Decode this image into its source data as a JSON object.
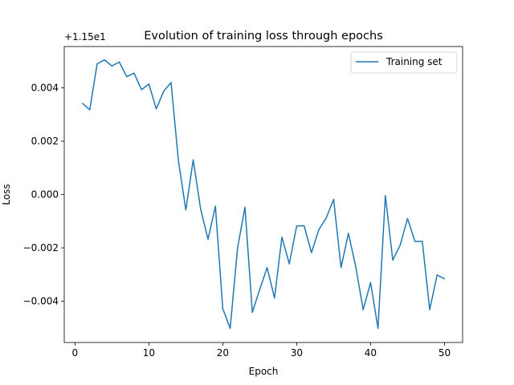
{
  "chart_data": {
    "type": "line",
    "title": "Evolution of training loss through epochs",
    "xlabel": "Epoch",
    "ylabel": "Loss",
    "offset_label": "+1.15e1",
    "xlim": [
      -1.45,
      52.45
    ],
    "ylim": [
      -0.00555,
      0.00555
    ],
    "xticks": [
      0,
      10,
      20,
      30,
      40,
      50
    ],
    "yticks": [
      -0.004,
      -0.002,
      0.0,
      0.002,
      0.004
    ],
    "xtick_labels": [
      "0",
      "10",
      "20",
      "30",
      "40",
      "50"
    ],
    "ytick_labels": [
      "−0.004",
      "−0.002",
      "0.000",
      "0.002",
      "0.004"
    ],
    "legend_position": "top-right",
    "grid": false,
    "series": [
      {
        "name": "Training set",
        "color": "#1f77b4",
        "x": [
          1,
          2,
          3,
          4,
          5,
          6,
          7,
          8,
          9,
          10,
          11,
          12,
          13,
          14,
          15,
          16,
          17,
          18,
          19,
          20,
          21,
          22,
          23,
          24,
          25,
          26,
          27,
          28,
          29,
          30,
          31,
          32,
          33,
          34,
          35,
          36,
          37,
          38,
          39,
          40,
          41,
          42,
          43,
          44,
          45,
          46,
          47,
          48,
          49,
          50
        ],
        "values": [
          0.00342,
          0.00318,
          0.0049,
          0.00505,
          0.00482,
          0.00497,
          0.00442,
          0.00455,
          0.00393,
          0.00414,
          0.00321,
          0.00387,
          0.0042,
          0.00126,
          -0.00058,
          0.0013,
          -0.00054,
          -0.00168,
          -0.00044,
          -0.00428,
          -0.00502,
          -0.002,
          -0.00048,
          -0.00442,
          -0.00356,
          -0.00274,
          -0.00388,
          -0.0016,
          -0.0026,
          -0.00118,
          -0.00117,
          -0.00218,
          -0.00132,
          -0.00088,
          -0.00018,
          -0.00274,
          -0.00146,
          -0.00272,
          -0.00432,
          -0.0033,
          -0.00502,
          -4e-05,
          -0.00246,
          -0.0019,
          -0.0009,
          -0.00176,
          -0.00176,
          -0.00432,
          -0.00302,
          -0.00316
        ]
      }
    ]
  }
}
